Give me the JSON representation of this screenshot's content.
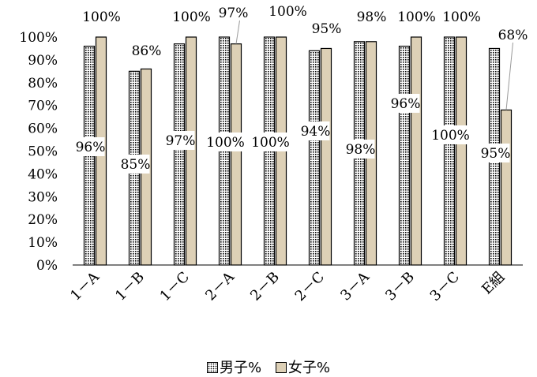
{
  "chart_data": {
    "type": "bar",
    "categories": [
      "1－A",
      "1－B",
      "1－C",
      "2－A",
      "2－B",
      "2－C",
      "3－A",
      "3－B",
      "3－C",
      "E組"
    ],
    "series": [
      {
        "name": "男子%",
        "values": [
          96,
          85,
          97,
          100,
          100,
          94,
          98,
          96,
          100,
          95
        ],
        "labels": [
          "96%",
          "85%",
          "97%",
          "100%",
          "100%",
          "94%",
          "98%",
          "96%",
          "100%",
          "95%"
        ]
      },
      {
        "name": "女子%",
        "values": [
          100,
          86,
          100,
          97,
          100,
          95,
          98,
          100,
          100,
          68
        ],
        "labels": [
          "100%",
          "86%",
          "100%",
          "97%",
          "100%",
          "95%",
          "98%",
          "100%",
          "100%",
          "68%"
        ]
      }
    ],
    "y_ticks": [
      "0%",
      "10%",
      "20%",
      "30%",
      "40%",
      "50%",
      "60%",
      "70%",
      "80%",
      "90%",
      "100%"
    ],
    "ylim": [
      0,
      100
    ],
    "legend_position": "bottom",
    "grid": false,
    "colors": {
      "male_fill": "#ffffff",
      "male_pattern": "#000000",
      "female_fill": "#ddd0b6",
      "outline": "#000000"
    }
  },
  "legend": {
    "male": "男子%",
    "female": "女子%"
  }
}
